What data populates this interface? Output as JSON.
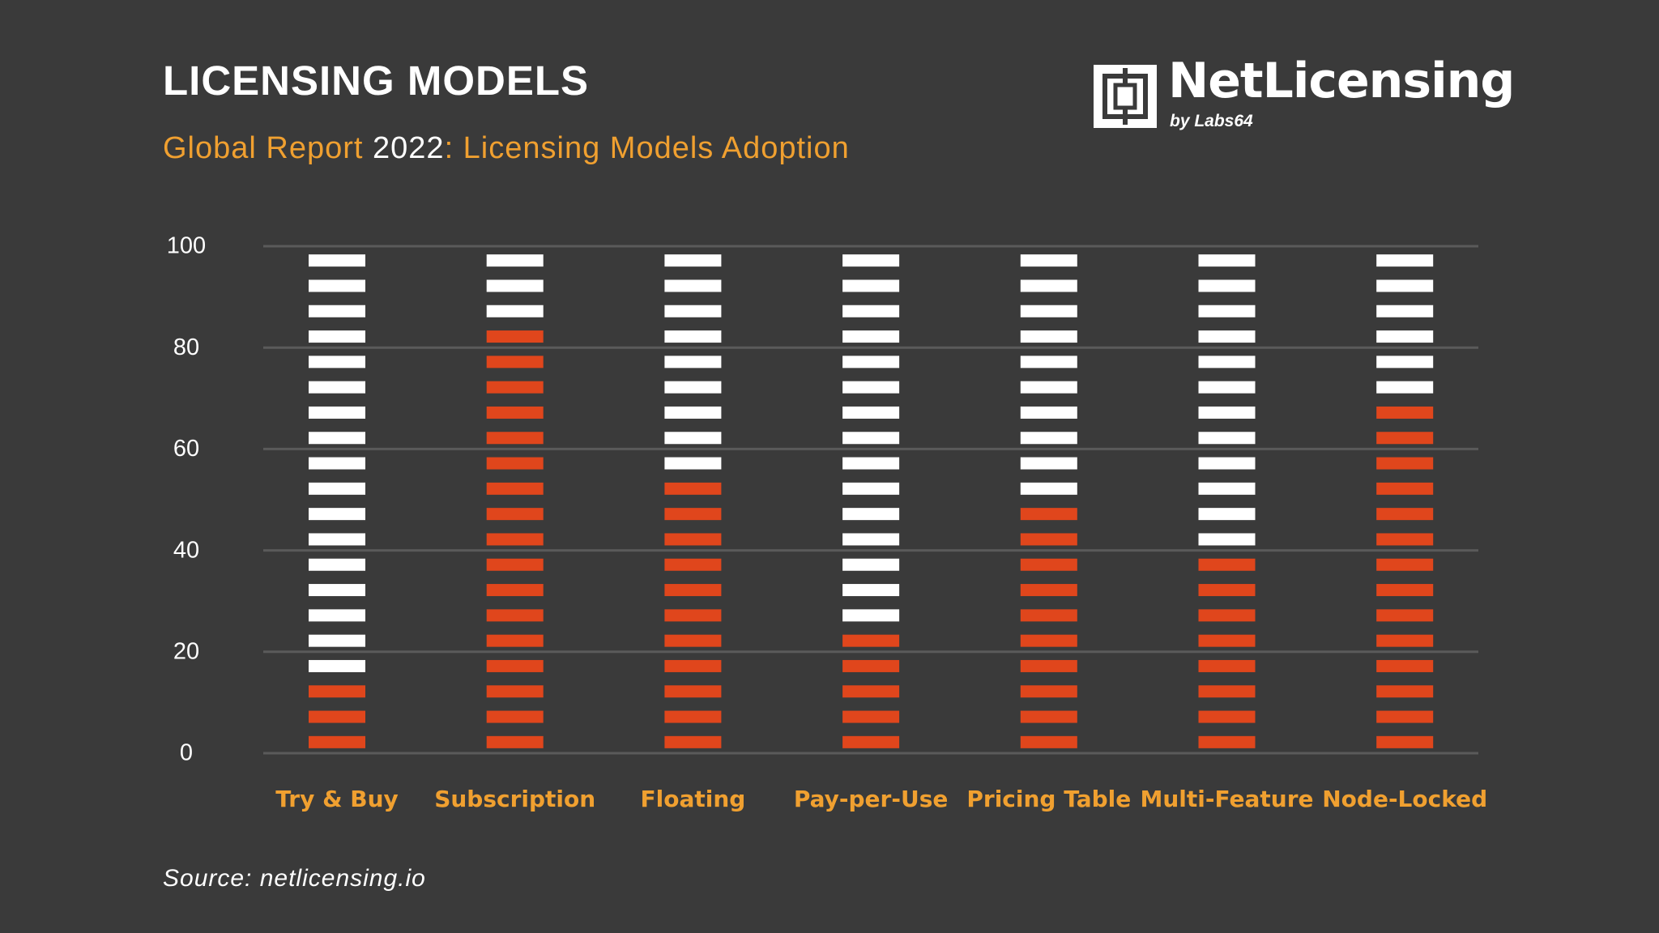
{
  "header": {
    "title": "LICENSING MODELS",
    "subtitle_part1": "Global Report ",
    "subtitle_year": "2022",
    "subtitle_part2": ": Licensing Models Adoption"
  },
  "logo": {
    "name": "NetLicensing",
    "by": "by Labs64",
    "icon": "netlicensing-logo-icon"
  },
  "footer": {
    "source": "Source: netlicensing.io"
  },
  "colors": {
    "background": "#3a3a3a",
    "adopted": "#e0461c",
    "remaining": "#ffffff",
    "category_label": "#f0a030",
    "grid": "#5a5a5a",
    "axis_text": "#ffffff"
  },
  "chart_data": {
    "type": "bar",
    "style": "stacked segmented bars (20 segments per bar, 5% each)",
    "categories": [
      "Try & Buy",
      "Subscription",
      "Floating",
      "Pay-per-Use",
      "Pricing Table",
      "Multi-Feature",
      "Node-Locked"
    ],
    "series": [
      {
        "values": [
          15,
          85,
          55,
          25,
          50,
          40,
          70
        ],
        "color": "#e0461c"
      },
      {
        "values": [
          85,
          15,
          45,
          75,
          50,
          60,
          30
        ],
        "color": "#ffffff"
      }
    ],
    "stacked": true,
    "ylim": [
      0,
      100
    ],
    "yticks": [
      "0",
      "20",
      "40",
      "60",
      "80",
      "100"
    ],
    "grid": true,
    "xlabel": "",
    "ylabel": ""
  }
}
